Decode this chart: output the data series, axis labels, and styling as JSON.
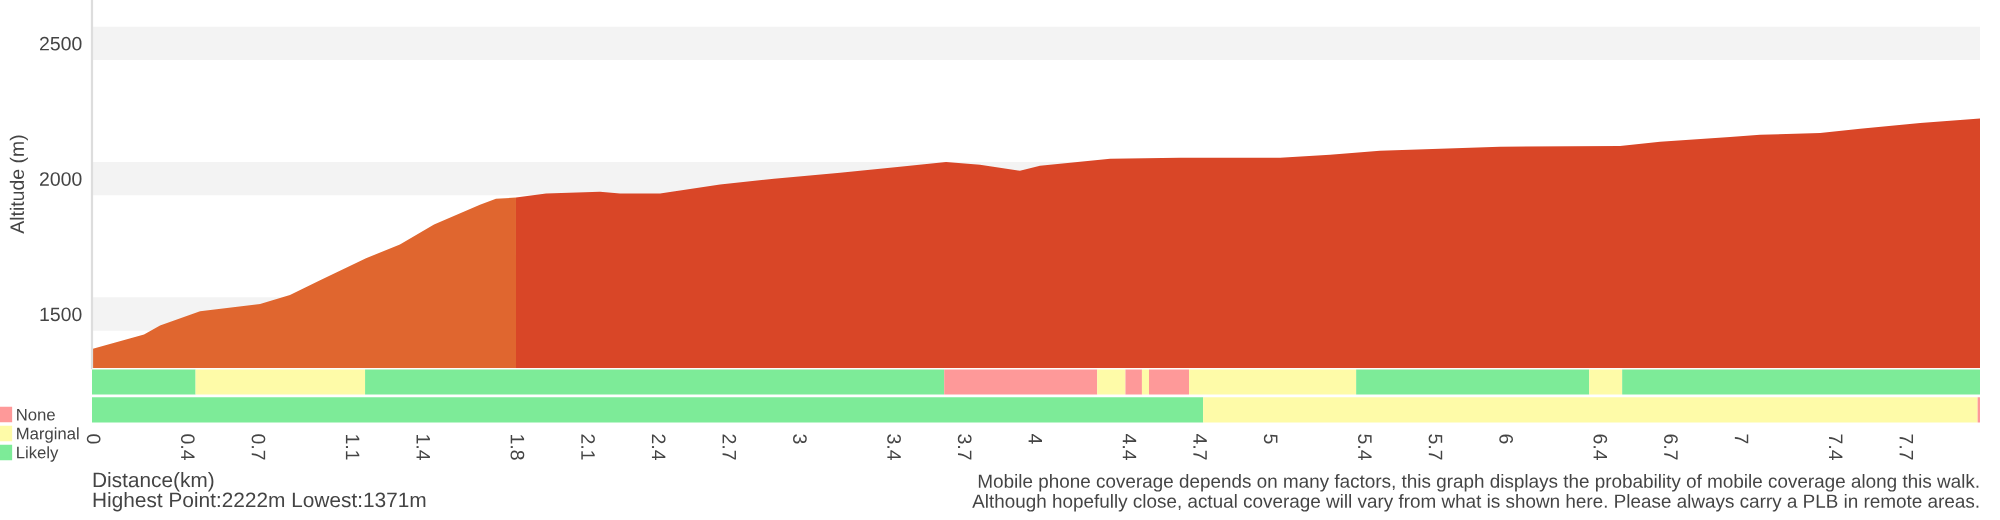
{
  "chart_data": [
    {
      "type": "area",
      "ylabel": "Altitude (m)",
      "xlim": [
        0,
        8.02
      ],
      "ylim": [
        1300,
        2660
      ],
      "yticks": [
        1500,
        2000,
        2500
      ],
      "xticks": [
        0,
        0.4,
        0.7,
        1.1,
        1.4,
        1.8,
        2.1,
        2.4,
        2.7,
        3,
        3.4,
        3.7,
        4,
        4.4,
        4.7,
        5,
        5.4,
        5.7,
        6,
        6.4,
        6.7,
        7,
        7.4,
        7.7
      ],
      "grid": "y",
      "tick_labels": "y",
      "series": [
        {
          "color": "#e0662f",
          "x": [
            0,
            0.221,
            0.289,
            0.459,
            0.714,
            0.841,
            0.969,
            1.164,
            1.308,
            1.453,
            1.648,
            1.716,
            1.801
          ],
          "values": [
            1371,
            1424,
            1458,
            1510,
            1537,
            1570,
            1625,
            1706,
            1757,
            1831,
            1904,
            1926,
            1930
          ]
        },
        {
          "color": "#d94627",
          "x": [
            1.801,
            1.929,
            2.158,
            2.243,
            2.413,
            2.668,
            2.897,
            3.178,
            3.432,
            3.628,
            3.772,
            3.942,
            4.027,
            4.325,
            4.622,
            5.047,
            5.259,
            5.471,
            5.981,
            6.491,
            6.661,
            6.958,
            7.086,
            7.341,
            7.511,
            7.766,
            8.02
          ],
          "values": [
            1930,
            1945,
            1952,
            1945,
            1945,
            1978,
            2000,
            2022,
            2044,
            2062,
            2051,
            2029,
            2048,
            2074,
            2077,
            2077,
            2088,
            2103,
            2118,
            2121,
            2136,
            2154,
            2162,
            2169,
            2184,
            2206,
            2222
          ]
        }
      ]
    },
    {
      "type": "bar",
      "orientation": "horizontal",
      "stacked": true,
      "categories": [
        null,
        null
      ],
      "xlim": [
        0,
        8.02
      ],
      "legend": "left",
      "tick_labels": "x",
      "xlabel": "Distance(km)",
      "xticks": [
        0,
        0.4,
        0.7,
        1.1,
        1.4,
        1.8,
        2.1,
        2.4,
        2.7,
        3,
        3.4,
        3.7,
        4,
        4.4,
        4.7,
        5,
        5.4,
        5.7,
        6,
        6.4,
        6.7,
        7,
        7.4,
        7.7
      ],
      "series": [
        {
          "name": "Likely",
          "color": "#7deb98",
          "values": [
            0.44,
            4.72
          ]
        },
        {
          "name": "Marginal",
          "color": "#fefba8",
          "values": [
            0.72,
            3.29
          ]
        },
        {
          "color": "#7deb98",
          "values": [
            2.46,
            null
          ]
        },
        {
          "name": "None",
          "color": "#fe9999",
          "values": [
            0.65,
            0.02
          ]
        },
        {
          "color": "#fefba8",
          "values": [
            0.12,
            null
          ]
        },
        {
          "color": "#fe9999",
          "values": [
            0.07,
            null
          ]
        },
        {
          "color": "#fefba8",
          "values": [
            0.03,
            null
          ]
        },
        {
          "color": "#fe9999",
          "values": [
            0.17,
            null
          ]
        },
        {
          "color": "#fefba8",
          "values": [
            0.71,
            null
          ]
        },
        {
          "color": "#7deb98",
          "values": [
            0.99,
            null
          ]
        },
        {
          "color": "#fefba8",
          "values": [
            0.14,
            null
          ]
        },
        {
          "color": "#7deb98",
          "values": [
            1.53,
            null
          ]
        }
      ],
      "annotations": [
        "Highest Point:2222m Lowest:1371m",
        "Mobile phone coverage depends on many factors, this graph displays the probability of mobile coverage along this walk.",
        "Although hopefully close, actual coverage will vary from what is shown here. Please always carry a PLB in remote areas."
      ]
    }
  ]
}
